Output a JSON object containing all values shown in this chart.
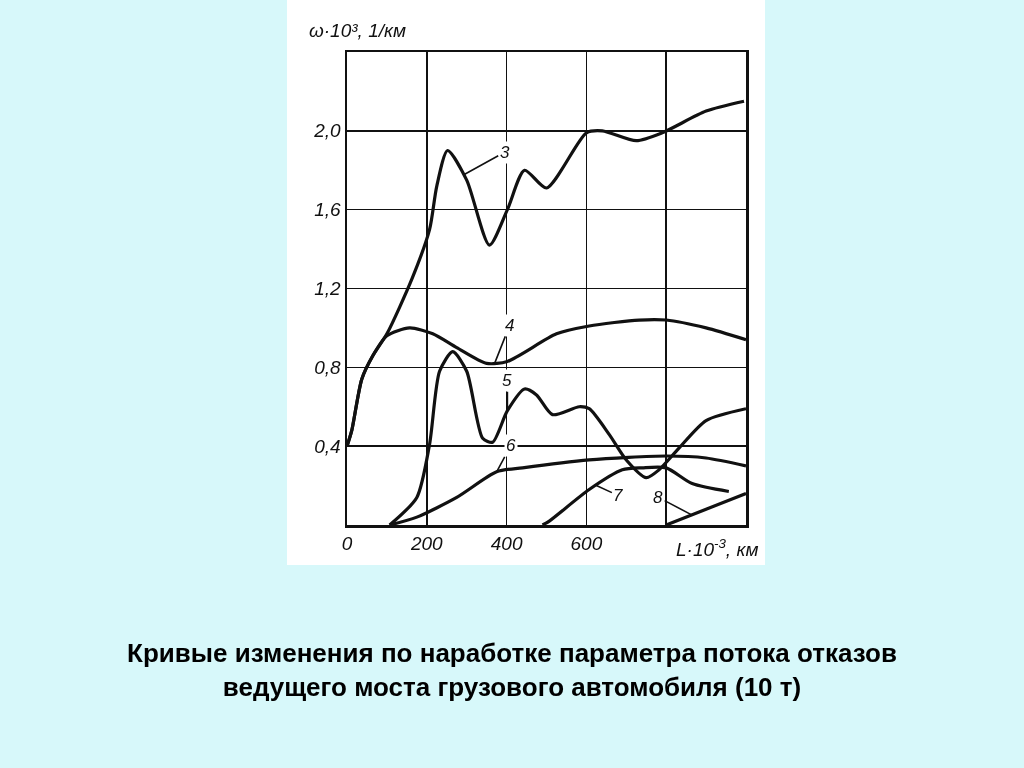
{
  "chart_data": {
    "type": "line",
    "title": "Кривые изменения по наработке параметра потока отказов ведущего моста грузового автомобиля (10 т)",
    "xlabel": "L·10$^{-3}$, км",
    "ylabel": "ω·10³, 1/км",
    "xlim": [
      0,
      1000
    ],
    "xticks": [
      0,
      200,
      400,
      600,
      {
        "value": 800,
        "label": null
      },
      {
        "value": 1000,
        "label": null
      }
    ],
    "ylim": [
      0,
      2.4
    ],
    "yticks": [
      {
        "value": 0,
        "label": null
      },
      {
        "value": 0.4,
        "label": "0,4"
      },
      {
        "value": 0.8,
        "label": "0,8"
      },
      {
        "value": 1.2,
        "label": "1,2"
      },
      {
        "value": 1.6,
        "label": "1,6"
      },
      {
        "value": 2.0,
        "label": "2,0"
      },
      {
        "value": 2.4,
        "label": null
      }
    ],
    "grid": true,
    "marker": "none",
    "line_style": "solid",
    "series": [
      {
        "color": "#111111",
        "x": [
          0,
          12,
          37,
          65,
          100,
          163,
          207,
          225,
          252,
          300,
          357,
          402,
          445,
          500,
          600,
          640,
          725,
          790,
          900,
          995
        ],
        "values": [
          0.4,
          0.48,
          0.74,
          0.86,
          0.97,
          1.25,
          1.5,
          1.72,
          1.9,
          1.75,
          1.42,
          1.6,
          1.8,
          1.71,
          1.99,
          2.0,
          1.95,
          1.99,
          2.1,
          2.15
        ]
      },
      {
        "color": "#111111",
        "x": [
          0,
          12,
          37,
          65,
          100,
          157,
          215,
          275,
          350,
          402,
          525,
          607,
          732,
          800,
          900,
          1000
        ],
        "values": [
          0.4,
          0.48,
          0.74,
          0.86,
          0.96,
          1.0,
          0.97,
          0.9,
          0.82,
          0.83,
          0.97,
          1.01,
          1.04,
          1.04,
          1.0,
          0.94
        ]
      },
      {
        "color": "#111111",
        "x": [
          107,
          175,
          207,
          232,
          265,
          300,
          340,
          365,
          402,
          445,
          475,
          515,
          582,
          607,
          657,
          700,
          750,
          782,
          832,
          900,
          1000
        ],
        "values": [
          0,
          0.14,
          0.41,
          0.78,
          0.88,
          0.78,
          0.44,
          0.42,
          0.58,
          0.69,
          0.66,
          0.56,
          0.6,
          0.59,
          0.46,
          0.33,
          0.24,
          0.28,
          0.39,
          0.53,
          0.59
        ]
      },
      {
        "color": "#111111",
        "x": [
          107,
          175,
          275,
          375,
          440,
          607,
          800,
          900,
          1000
        ],
        "values": [
          0,
          0.04,
          0.14,
          0.27,
          0.29,
          0.33,
          0.35,
          0.34,
          0.3
        ]
      },
      {
        "color": "#111111",
        "x": [
          490,
          507,
          607,
          690,
          740,
          800,
          865,
          957
        ],
        "values": [
          0,
          0.02,
          0.18,
          0.28,
          0.29,
          0.29,
          0.21,
          0.17
        ]
      },
      {
        "color": "#111111",
        "x": [
          800,
          900,
          1000
        ],
        "values": [
          0,
          0.08,
          0.16
        ]
      }
    ],
    "annotations": [
      {
        "text": "3",
        "x": 295,
        "y": 1.78
      },
      {
        "text": "4",
        "x": 370,
        "y": 0.82
      },
      {
        "text": "5",
        "x": 402,
        "y": 0.58
      },
      {
        "text": "6",
        "x": 375,
        "y": 0.27
      },
      {
        "text": "7",
        "x": 625,
        "y": 0.2
      },
      {
        "text": "8",
        "x": 865,
        "y": 0.05
      }
    ]
  }
}
